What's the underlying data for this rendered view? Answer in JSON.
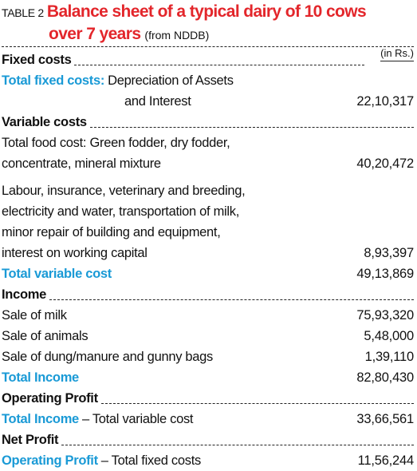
{
  "header": {
    "label": "TABLE 2",
    "title_lines": [
      "Balance sheet of a typical dairy of 10 cows",
      "over 7 years"
    ],
    "source": "(from NDDB)",
    "unit": "(in Rs.)"
  },
  "sections": [
    {
      "heading": "Fixed costs",
      "rows": [
        {
          "lead": "Total fixed costs:",
          "lines": [
            "Depreciation of Assets",
            "and Interest"
          ],
          "value": "22,10,317"
        }
      ]
    },
    {
      "heading": "Variable costs",
      "rows": [
        {
          "lines": [
            "Total food cost: Green fodder, dry fodder,",
            "concentrate, mineral mixture"
          ],
          "value": "40,20,472"
        },
        {
          "lines": [
            "Labour, insurance, veterinary and breeding,",
            "electricity and water, transportation of milk,",
            "minor repair of building and equipment,",
            "interest on working capital"
          ],
          "value": "8,93,397"
        },
        {
          "lead": "Total variable cost",
          "value": "49,13,869"
        }
      ]
    },
    {
      "heading": "Income",
      "rows": [
        {
          "lines": [
            "Sale of milk"
          ],
          "value": "75,93,320"
        },
        {
          "lines": [
            "Sale of animals"
          ],
          "value": "5,48,000"
        },
        {
          "lines": [
            "Sale of dung/manure and gunny bags"
          ],
          "value": "1,39,110"
        },
        {
          "lead": "Total Income",
          "value": "82,80,430"
        }
      ]
    },
    {
      "heading": "Operating Profit",
      "rows": [
        {
          "lead": "Total Income",
          "lines": [
            "– Total variable cost"
          ],
          "value": "33,66,561"
        }
      ]
    },
    {
      "heading": "Net Profit",
      "rows": [
        {
          "lead": "Operating Profit",
          "lines": [
            "– Total fixed costs"
          ],
          "value": "11,56,244"
        }
      ]
    }
  ]
}
